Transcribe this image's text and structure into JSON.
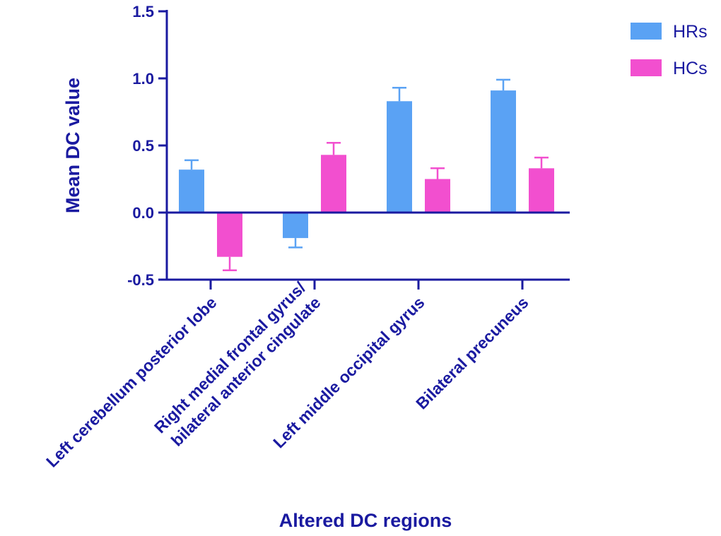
{
  "chart_data": {
    "type": "bar",
    "title": "",
    "xlabel": "Altered DC regions",
    "ylabel": "Mean DC value",
    "ylim": [
      -0.5,
      1.5
    ],
    "yticks": [
      1.5,
      1.0,
      0.5,
      0.0,
      -0.5
    ],
    "ytick_labels": [
      "1.5",
      "1.0",
      "0.5",
      "0.0",
      "-0.5"
    ],
    "grid": false,
    "legend_position": "top-right",
    "categories": [
      [
        "Left cerebellum posterior lobe"
      ],
      [
        "Right medial frontal gyrus/",
        "bilateral anterior cingulate"
      ],
      [
        "Left middle occipital gyrus"
      ],
      [
        "Bilateral precuneus"
      ]
    ],
    "series": [
      {
        "name": "HRs",
        "color": "#5aa2f4",
        "values": [
          0.32,
          -0.19,
          0.83,
          0.91
        ],
        "errors": [
          0.07,
          0.07,
          0.1,
          0.08
        ]
      },
      {
        "name": "HCs",
        "color": "#f24fcf",
        "values": [
          -0.33,
          0.43,
          0.25,
          0.33
        ],
        "errors": [
          0.1,
          0.09,
          0.08,
          0.08
        ]
      }
    ],
    "axis_color": "#1a1aa0"
  }
}
